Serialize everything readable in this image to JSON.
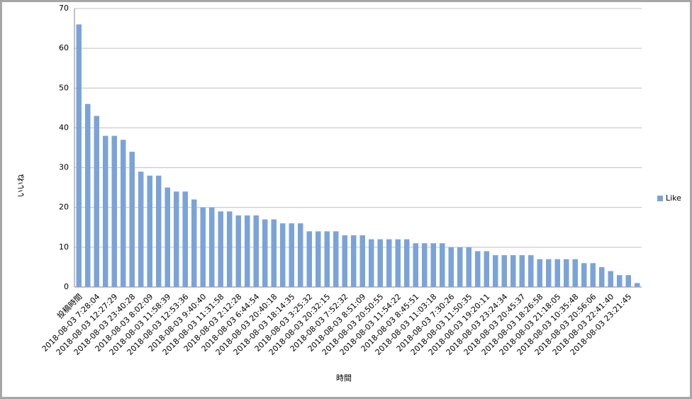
{
  "chart_data": {
    "type": "bar",
    "x_label": "時間",
    "y_label": "いいね",
    "categories": [
      "投稿時間",
      null,
      "2018-08-03 7:28:04",
      null,
      "2018-08-03 12:27:29",
      null,
      "2018-08-03 23:40:28",
      null,
      "2018-08-03 8:02:09",
      null,
      "2018-08-03 11:58:39",
      null,
      "2018-08-03 12:53:36",
      null,
      "2018-08-03 9:40:40",
      null,
      "2018-08-03 11:31:58",
      null,
      "2018-08-03 2:12:28",
      null,
      "2018-08-03 6:44:54",
      null,
      "2018-08-03 20:40:18",
      null,
      "2018-08-03 18:14:35",
      null,
      "2018-08-03 3:25:32",
      null,
      "2018-08-03 20:32:15",
      null,
      "2018-08-03 7:52:32",
      null,
      "2018-08-03 8:51:09",
      null,
      "2018-08-03 20:50:55",
      null,
      "2018-08-03 11:54:22",
      null,
      "2018-08-03 8:45:51",
      null,
      "2018-08-03 11:03:18",
      null,
      "2018-08-03 7:30:26",
      null,
      "2018-08-03 11:50:35",
      null,
      "2018-08-03 19:20:11",
      null,
      "2018-08-03 23:24:34",
      null,
      "2018-08-03 20:45:37",
      null,
      "2018-08-03 18:26:58",
      null,
      "2018-08-03 21:18:05",
      null,
      "2018-08-03 10:35:48",
      null,
      "2018-08-03 20:56:06",
      null,
      "2018-08-03 22:41:40",
      null,
      "2018-08-03 23:21:45",
      null
    ],
    "series": [
      {
        "name": "Like",
        "color": "#7ba3d9",
        "values": [
          66,
          46,
          43,
          38,
          38,
          37,
          34,
          29,
          28,
          28,
          25,
          24,
          24,
          22,
          20,
          20,
          19,
          19,
          18,
          18,
          18,
          17,
          17,
          16,
          16,
          16,
          14,
          14,
          14,
          14,
          13,
          13,
          13,
          12,
          12,
          12,
          12,
          12,
          11,
          11,
          11,
          11,
          10,
          10,
          10,
          9,
          9,
          8,
          8,
          8,
          8,
          8,
          7,
          7,
          7,
          7,
          7,
          6,
          6,
          5,
          4,
          3,
          3,
          1
        ]
      }
    ],
    "ylim": [
      0,
      70
    ],
    "yticks": [
      0,
      10,
      20,
      30,
      40,
      50,
      60,
      70
    ],
    "grid": true,
    "legend": "right"
  }
}
